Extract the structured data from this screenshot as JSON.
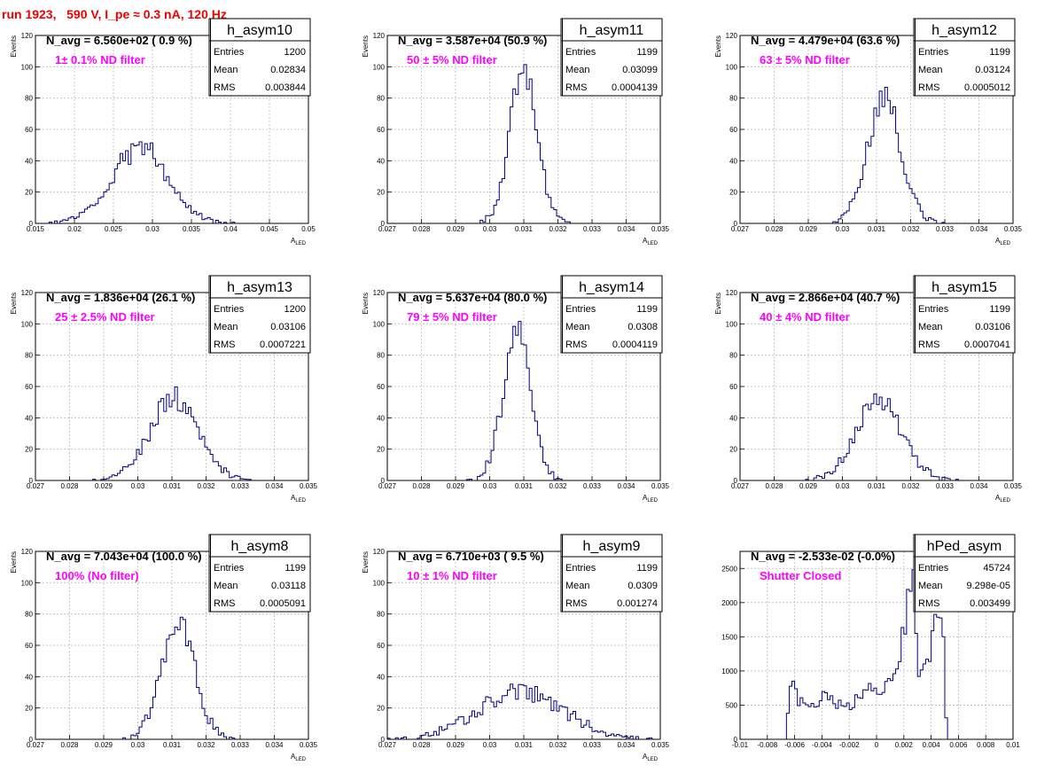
{
  "page_title": "run 1923,   590 V, I_pe ≈ 0.3 nA, 120 Hz",
  "colors": {
    "histogram": "#000080",
    "title": "#ee0000",
    "annotation": "#ff00ff",
    "grid": "#bbbbbb"
  },
  "chart_data": [
    {
      "type": "histogram",
      "name": "h_asym10",
      "stats": {
        "entries": "1200",
        "mean": "0.02834",
        "rms": "0.003844"
      },
      "navg": "N_avg = 6.560e+02 ( 0.9 %)",
      "annotation": "1± 0.1% ND filter",
      "xlabel": "A_LED",
      "ylabel": "Events",
      "xlim": [
        0.015,
        0.05
      ],
      "ylim": [
        0,
        120
      ],
      "xticks": [
        0.015,
        0.02,
        0.025,
        0.03,
        0.035,
        0.04,
        0.045,
        0.05
      ],
      "xtick_labels": [
        "0.015",
        "0.02",
        "0.025",
        "0.03",
        "0.035",
        "0.04",
        "0.045",
        "0.05"
      ],
      "yticks": [
        0,
        20,
        40,
        60,
        80,
        100,
        120
      ],
      "grid": true,
      "dist": "gauss",
      "mu": 0.0284,
      "sigma": 0.0037,
      "peak": 48,
      "n_bins": 100,
      "seed": 10
    },
    {
      "type": "histogram",
      "name": "h_asym11",
      "stats": {
        "entries": "1199",
        "mean": "0.03099",
        "rms": "0.0004139"
      },
      "navg": "N_avg = 3.587e+04 (50.9 %)",
      "annotation": "50 ± 5% ND filter",
      "xlabel": "A_LED",
      "ylabel": "Events",
      "xlim": [
        0.027,
        0.035
      ],
      "ylim": [
        0,
        120
      ],
      "xticks": [
        0.027,
        0.028,
        0.029,
        0.03,
        0.031,
        0.032,
        0.033,
        0.034,
        0.035
      ],
      "xtick_labels": [
        "0.027",
        "0.028",
        "0.029",
        "0.03",
        "0.031",
        "0.032",
        "0.033",
        "0.034",
        "0.035"
      ],
      "yticks": [
        0,
        20,
        40,
        60,
        80,
        100,
        120
      ],
      "grid": true,
      "dist": "gauss",
      "mu": 0.03099,
      "sigma": 0.00041,
      "peak": 95,
      "n_bins": 100,
      "seed": 11
    },
    {
      "type": "histogram",
      "name": "h_asym12",
      "stats": {
        "entries": "1199",
        "mean": "0.03124",
        "rms": "0.0005012"
      },
      "navg": "N_avg = 4.479e+04 (63.6 %)",
      "annotation": "63 ± 5% ND filter",
      "xlabel": "A_LED",
      "ylabel": "Events",
      "xlim": [
        0.027,
        0.035
      ],
      "ylim": [
        0,
        120
      ],
      "xticks": [
        0.027,
        0.028,
        0.029,
        0.03,
        0.031,
        0.032,
        0.033,
        0.034,
        0.035
      ],
      "xtick_labels": [
        "0.027",
        "0.028",
        "0.029",
        "0.03",
        "0.031",
        "0.032",
        "0.033",
        "0.034",
        "0.035"
      ],
      "yticks": [
        0,
        20,
        40,
        60,
        80,
        100,
        120
      ],
      "grid": true,
      "dist": "gauss",
      "mu": 0.03124,
      "sigma": 0.0005,
      "peak": 78,
      "n_bins": 100,
      "seed": 12
    },
    {
      "type": "histogram",
      "name": "h_asym13",
      "stats": {
        "entries": "1200",
        "mean": "0.03106",
        "rms": "0.0007221"
      },
      "navg": "N_avg = 1.836e+04 (26.1 %)",
      "annotation": "25 ± 2.5% ND filter",
      "xlabel": "A_LED",
      "ylabel": "Events",
      "xlim": [
        0.027,
        0.035
      ],
      "ylim": [
        0,
        120
      ],
      "xticks": [
        0.027,
        0.028,
        0.029,
        0.03,
        0.031,
        0.032,
        0.033,
        0.034,
        0.035
      ],
      "xtick_labels": [
        "0.027",
        "0.028",
        "0.029",
        "0.03",
        "0.031",
        "0.032",
        "0.033",
        "0.034",
        "0.035"
      ],
      "yticks": [
        0,
        20,
        40,
        60,
        80,
        100,
        120
      ],
      "grid": true,
      "dist": "gauss",
      "mu": 0.03106,
      "sigma": 0.00072,
      "peak": 52,
      "n_bins": 100,
      "seed": 13
    },
    {
      "type": "histogram",
      "name": "h_asym14",
      "stats": {
        "entries": "1199",
        "mean": "0.0308",
        "rms": "0.0004119"
      },
      "navg": "N_avg = 5.637e+04 (80.0 %)",
      "annotation": "79 ± 5% ND filter",
      "xlabel": "A_LED",
      "ylabel": "Events",
      "xlim": [
        0.027,
        0.035
      ],
      "ylim": [
        0,
        120
      ],
      "xticks": [
        0.027,
        0.028,
        0.029,
        0.03,
        0.031,
        0.032,
        0.033,
        0.034,
        0.035
      ],
      "xtick_labels": [
        "0.027",
        "0.028",
        "0.029",
        "0.03",
        "0.031",
        "0.032",
        "0.033",
        "0.034",
        "0.035"
      ],
      "yticks": [
        0,
        20,
        40,
        60,
        80,
        100,
        120
      ],
      "grid": true,
      "dist": "gauss",
      "mu": 0.0308,
      "sigma": 0.00041,
      "peak": 93,
      "n_bins": 100,
      "seed": 14
    },
    {
      "type": "histogram",
      "name": "h_asym15",
      "stats": {
        "entries": "1199",
        "mean": "0.03106",
        "rms": "0.0007041"
      },
      "navg": "N_avg = 2.866e+04 (40.7 %)",
      "annotation": "40 ± 4% ND filter",
      "xlabel": "A_LED",
      "ylabel": "Events",
      "xlim": [
        0.027,
        0.035
      ],
      "ylim": [
        0,
        120
      ],
      "xticks": [
        0.027,
        0.028,
        0.029,
        0.03,
        0.031,
        0.032,
        0.033,
        0.034,
        0.035
      ],
      "xtick_labels": [
        "0.027",
        "0.028",
        "0.029",
        "0.03",
        "0.031",
        "0.032",
        "0.033",
        "0.034",
        "0.035"
      ],
      "yticks": [
        0,
        20,
        40,
        60,
        80,
        100,
        120
      ],
      "grid": true,
      "dist": "gauss",
      "mu": 0.03106,
      "sigma": 0.0007,
      "peak": 50,
      "n_bins": 100,
      "seed": 15
    },
    {
      "type": "histogram",
      "name": "h_asym8",
      "stats": {
        "entries": "1199",
        "mean": "0.03118",
        "rms": "0.0005091"
      },
      "navg": "N_avg = 7.043e+04 (100.0 %)",
      "annotation": "100% (No filter)",
      "xlabel": "A_LED",
      "ylabel": "Events",
      "xlim": [
        0.027,
        0.035
      ],
      "ylim": [
        0,
        120
      ],
      "xticks": [
        0.027,
        0.028,
        0.029,
        0.03,
        0.031,
        0.032,
        0.033,
        0.034,
        0.035
      ],
      "xtick_labels": [
        "0.027",
        "0.028",
        "0.029",
        "0.03",
        "0.031",
        "0.032",
        "0.033",
        "0.034",
        "0.035"
      ],
      "yticks": [
        0,
        20,
        40,
        60,
        80,
        100,
        120
      ],
      "grid": true,
      "dist": "gauss",
      "mu": 0.03118,
      "sigma": 0.0005,
      "peak": 72,
      "n_bins": 100,
      "seed": 8
    },
    {
      "type": "histogram",
      "name": "h_asym9",
      "stats": {
        "entries": "1199",
        "mean": "0.0309",
        "rms": "0.001274"
      },
      "navg": "N_avg = 6.710e+03 ( 9.5 %)",
      "annotation": "10 ± 1% ND filter",
      "xlabel": "A_LED",
      "ylabel": "Events",
      "xlim": [
        0.027,
        0.035
      ],
      "ylim": [
        0,
        120
      ],
      "xticks": [
        0.027,
        0.028,
        0.029,
        0.03,
        0.031,
        0.032,
        0.033,
        0.034,
        0.035
      ],
      "xtick_labels": [
        "0.027",
        "0.028",
        "0.029",
        "0.03",
        "0.031",
        "0.032",
        "0.033",
        "0.034",
        "0.035"
      ],
      "yticks": [
        0,
        20,
        40,
        60,
        80,
        100,
        120
      ],
      "grid": true,
      "dist": "gauss",
      "mu": 0.0309,
      "sigma": 0.00127,
      "peak": 30,
      "n_bins": 100,
      "seed": 9
    },
    {
      "type": "histogram",
      "name": "hPed_asym",
      "stats": {
        "entries": "45724",
        "mean": "9.298e-05",
        "rms": "0.003499"
      },
      "navg": "N_avg = -2.533e-02 (-0.0%)",
      "annotation": "Shutter Closed",
      "xlabel": "",
      "ylabel": "",
      "xlim": [
        -0.01,
        0.01
      ],
      "ylim": [
        0,
        2750
      ],
      "xticks": [
        -0.01,
        -0.008,
        -0.006,
        -0.004,
        -0.002,
        0,
        0.002,
        0.004,
        0.006,
        0.008,
        0.01
      ],
      "xtick_labels": [
        "-0.01",
        "-0.008",
        "-0.006",
        "-0.004",
        "-0.002",
        "0",
        "0.002",
        "0.004",
        "0.006",
        "0.008",
        "0.01"
      ],
      "yticks": [
        0,
        500,
        1000,
        1500,
        2000,
        2500
      ],
      "grid": true,
      "dist": "ped",
      "n_bins": 100,
      "seed": 99,
      "ped_profile": [
        [
          -0.0066,
          0
        ],
        [
          -0.0064,
          700
        ],
        [
          -0.0062,
          1000
        ],
        [
          -0.006,
          800
        ],
        [
          -0.0058,
          600
        ],
        [
          -0.0054,
          520
        ],
        [
          -0.005,
          500
        ],
        [
          -0.0046,
          520
        ],
        [
          -0.0042,
          520
        ],
        [
          -0.004,
          570
        ],
        [
          -0.0038,
          680
        ],
        [
          -0.0034,
          600
        ],
        [
          -0.003,
          520
        ],
        [
          -0.0026,
          520
        ],
        [
          -0.0024,
          480
        ],
        [
          -0.002,
          470
        ],
        [
          -0.0016,
          560
        ],
        [
          -0.0012,
          650
        ],
        [
          -0.0008,
          760
        ],
        [
          -0.0004,
          840
        ],
        [
          0.0,
          680
        ],
        [
          0.0004,
          720
        ],
        [
          0.0008,
          820
        ],
        [
          0.0012,
          980
        ],
        [
          0.0016,
          1200
        ],
        [
          0.002,
          1600
        ],
        [
          0.0024,
          2400
        ],
        [
          0.0026,
          2650
        ],
        [
          0.0028,
          2000
        ],
        [
          0.003,
          1100
        ],
        [
          0.0032,
          1050
        ],
        [
          0.0034,
          900
        ],
        [
          0.0036,
          1050
        ],
        [
          0.004,
          1300
        ],
        [
          0.0044,
          1800
        ],
        [
          0.0048,
          1950
        ],
        [
          0.005,
          700
        ],
        [
          0.0052,
          0
        ]
      ]
    }
  ]
}
